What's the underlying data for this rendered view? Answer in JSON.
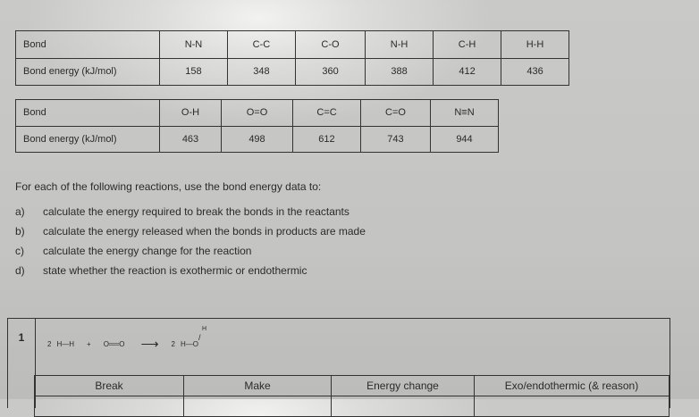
{
  "table1": {
    "row_labels": [
      "Bond",
      "Bond energy (kJ/mol)"
    ],
    "bonds": [
      "N-N",
      "C-C",
      "C-O",
      "N-H",
      "C-H",
      "H-H"
    ],
    "energies": [
      "158",
      "348",
      "360",
      "388",
      "412",
      "436"
    ]
  },
  "table2": {
    "row_labels": [
      "Bond",
      "Bond energy (kJ/mol)"
    ],
    "bonds": [
      "O-H",
      "O=O",
      "C=C",
      "C=O",
      "N≡N"
    ],
    "energies": [
      "463",
      "498",
      "612",
      "743",
      "944"
    ]
  },
  "instructions": {
    "intro": "For each of the following reactions, use the bond energy data to:",
    "items": [
      {
        "letter": "a)",
        "text": "calculate the energy required to break the bonds in the reactants"
      },
      {
        "letter": "b)",
        "text": "calculate the energy released when the bonds in products are made"
      },
      {
        "letter": "c)",
        "text": "calculate the energy change for the reaction"
      },
      {
        "letter": "d)",
        "text": "state whether the reaction is exothermic or endothermic"
      }
    ]
  },
  "question1": {
    "number": "1",
    "equation": {
      "coef1": "2",
      "reactant1": "H—H",
      "plus": "+",
      "reactant2": "O══O",
      "arrow": "⟶",
      "coef2": "2",
      "product": "H—O",
      "product_h": "H"
    },
    "columns": [
      "Break",
      "Make",
      "Energy change",
      "Exo/endothermic (& reason)"
    ]
  }
}
